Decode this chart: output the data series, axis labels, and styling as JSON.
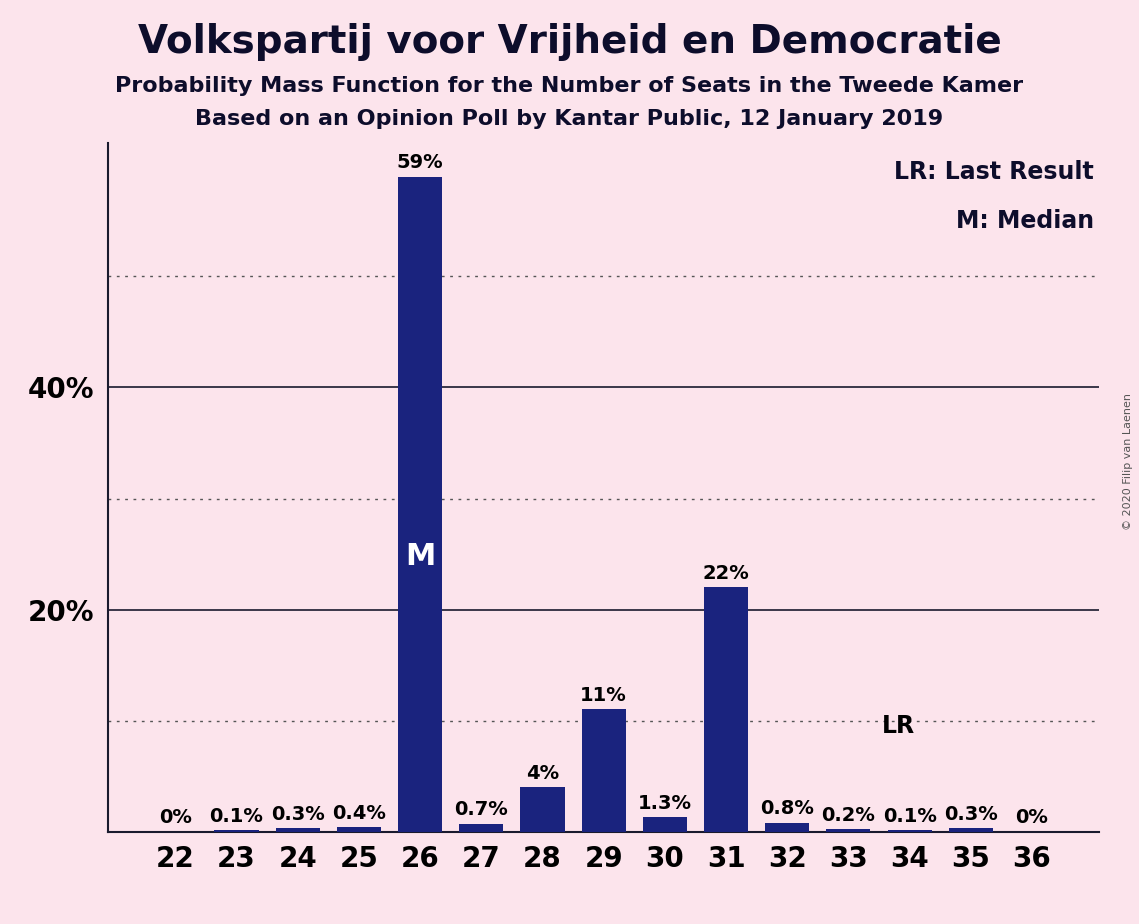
{
  "title": "Volkspartij voor Vrijheid en Democratie",
  "subtitle1": "Probability Mass Function for the Number of Seats in the Tweede Kamer",
  "subtitle2": "Based on an Opinion Poll by Kantar Public, 12 January 2019",
  "copyright": "© 2020 Filip van Laenen",
  "categories": [
    22,
    23,
    24,
    25,
    26,
    27,
    28,
    29,
    30,
    31,
    32,
    33,
    34,
    35,
    36
  ],
  "values": [
    0.0,
    0.1,
    0.3,
    0.4,
    59.0,
    0.7,
    4.0,
    11.0,
    1.3,
    22.0,
    0.8,
    0.2,
    0.1,
    0.3,
    0.0
  ],
  "labels": [
    "0%",
    "0.1%",
    "0.3%",
    "0.4%",
    "59%",
    "0.7%",
    "4%",
    "11%",
    "1.3%",
    "22%",
    "0.8%",
    "0.2%",
    "0.1%",
    "0.3%",
    "0%"
  ],
  "bar_color": "#1a237e",
  "background_color": "#fce4ec",
  "median_seat": 26,
  "last_result_seat": 33,
  "legend_lr": "LR: Last Result",
  "legend_m": "M: Median",
  "solid_grid": [
    20,
    40
  ],
  "dotted_grid": [
    10,
    30,
    50
  ],
  "title_fontsize": 28,
  "subtitle_fontsize": 16,
  "tick_fontsize": 20,
  "bar_label_fontsize": 14,
  "legend_fontsize": 17,
  "median_label_fontsize": 22,
  "lr_label_fontsize": 17,
  "copyright_fontsize": 8,
  "ylim": [
    0,
    62
  ],
  "ytick_labels_map": {
    "20": "20%",
    "40": "40%"
  }
}
